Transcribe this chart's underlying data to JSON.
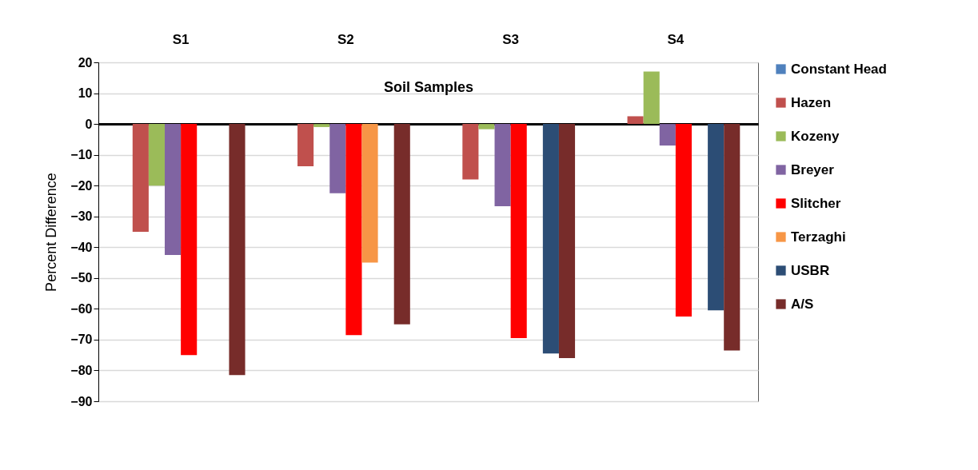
{
  "chart_data": {
    "type": "bar",
    "xlabel": "Soil Samples",
    "ylabel": "Percent Difference",
    "categories": [
      "S1",
      "S2",
      "S3",
      "S4"
    ],
    "series": [
      {
        "name": "Constant Head",
        "color": "#4f81bd",
        "values": [
          null,
          null,
          null,
          null
        ]
      },
      {
        "name": "Hazen",
        "color": "#c0504d",
        "values": [
          -35,
          -13.7,
          -18,
          2.5
        ]
      },
      {
        "name": "Kozeny",
        "color": "#9bbb59",
        "values": [
          -20,
          -1,
          -1.7,
          17
        ]
      },
      {
        "name": "Breyer",
        "color": "#8064a2",
        "values": [
          -42.5,
          -22.5,
          -26.7,
          -7
        ]
      },
      {
        "name": "Slitcher",
        "color": "#ff0000",
        "values": [
          -75,
          -68.5,
          -69.5,
          -62.5
        ]
      },
      {
        "name": "Terzaghi",
        "color": "#f79646",
        "values": [
          null,
          -45,
          null,
          null
        ]
      },
      {
        "name": "USBR",
        "color": "#2c4d75",
        "values": [
          null,
          null,
          -74.5,
          -60.5
        ]
      },
      {
        "name": "A/S",
        "color": "#772c2a",
        "values": [
          -81.5,
          -65,
          -76,
          -73.5
        ]
      }
    ],
    "ylim": [
      -90,
      20
    ],
    "yticks": [
      -90,
      -80,
      -70,
      -60,
      -50,
      -40,
      -30,
      -20,
      -10,
      0,
      10,
      20
    ],
    "grid": "y",
    "legend": "right"
  }
}
